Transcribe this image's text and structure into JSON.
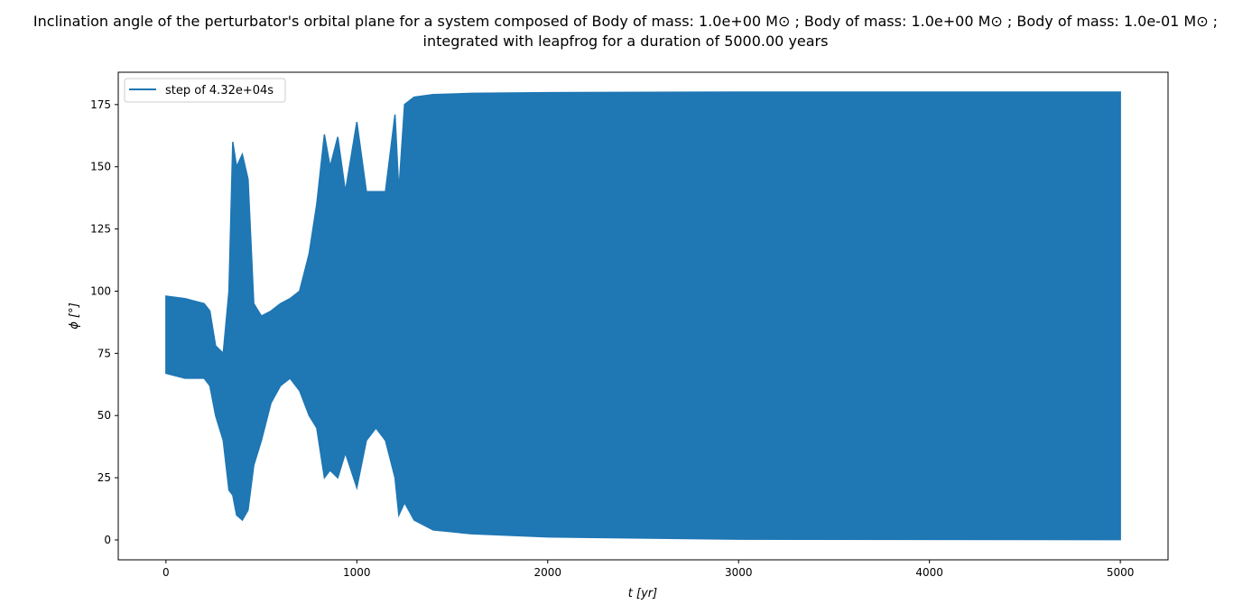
{
  "chart_data": {
    "type": "area",
    "title_line1": "Inclination angle of the perturbator's orbital plane for a system composed of Body of mass: 1.0e+00 M⊙ ; Body of mass: 1.0e+00 M⊙ ; Body of mass: 1.0e-01 M⊙ ;",
    "title_line2": "integrated with leapfrog for a duration of 5000.00 years",
    "xlabel": "t [yr]",
    "ylabel": "ϕ [°]",
    "xlim": [
      -250,
      5250
    ],
    "ylim": [
      -8,
      188
    ],
    "xticks": [
      0,
      1000,
      2000,
      3000,
      4000,
      5000
    ],
    "yticks": [
      0,
      25,
      50,
      75,
      100,
      125,
      150,
      175
    ],
    "grid": false,
    "legend_position": "top-left",
    "color": "#1f77b4",
    "series": [
      {
        "name": "step of 4.32e+04s",
        "envelope_columns": [
          "t",
          "min",
          "max"
        ],
        "envelope": [
          [
            0,
            67,
            98
          ],
          [
            100,
            65,
            97
          ],
          [
            200,
            65,
            95
          ],
          [
            230,
            62,
            92
          ],
          [
            260,
            50,
            78
          ],
          [
            300,
            40,
            75
          ],
          [
            330,
            20,
            100
          ],
          [
            350,
            18,
            160
          ],
          [
            370,
            10,
            150
          ],
          [
            400,
            8,
            155
          ],
          [
            430,
            12,
            145
          ],
          [
            460,
            30,
            95
          ],
          [
            500,
            40,
            90
          ],
          [
            550,
            55,
            92
          ],
          [
            600,
            62,
            95
          ],
          [
            650,
            65,
            97
          ],
          [
            700,
            60,
            100
          ],
          [
            750,
            50,
            115
          ],
          [
            790,
            45,
            135
          ],
          [
            830,
            25,
            163
          ],
          [
            860,
            28,
            150
          ],
          [
            900,
            25,
            162
          ],
          [
            940,
            35,
            140
          ],
          [
            1000,
            21,
            168
          ],
          [
            1050,
            40,
            140
          ],
          [
            1100,
            45,
            140
          ],
          [
            1150,
            40,
            140
          ],
          [
            1200,
            25,
            171
          ],
          [
            1220,
            10,
            140
          ],
          [
            1250,
            15,
            175
          ],
          [
            1300,
            8,
            178
          ],
          [
            1400,
            4,
            179
          ],
          [
            1600,
            2.5,
            179.5
          ],
          [
            2000,
            1.2,
            179.8
          ],
          [
            3000,
            0.3,
            180
          ],
          [
            5000,
            0.1,
            180
          ]
        ]
      }
    ]
  }
}
